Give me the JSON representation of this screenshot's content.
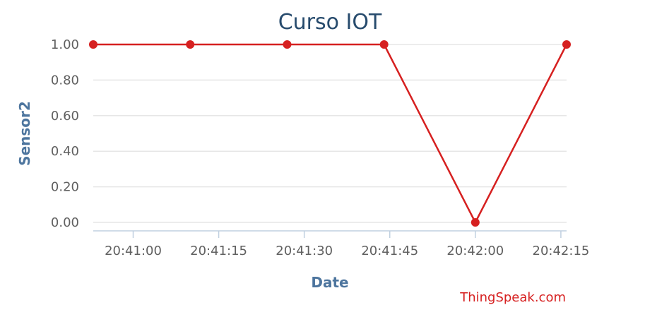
{
  "chart_data": {
    "type": "line",
    "title": "Curso IOT",
    "xlabel": "Date",
    "ylabel": "Sensor2",
    "ylim": [
      0,
      1
    ],
    "y_ticks": [
      "0.00",
      "0.20",
      "0.40",
      "0.60",
      "0.80",
      "1.00"
    ],
    "x_ticks": [
      "20:41:00",
      "20:41:15",
      "20:41:30",
      "20:41:45",
      "20:42:00",
      "20:42:15"
    ],
    "grid": true,
    "legend": "none",
    "series": [
      {
        "x": [
          "20:40:53",
          "20:41:10",
          "20:41:27",
          "20:41:44",
          "20:42:00",
          "20:42:16"
        ],
        "y": [
          1,
          1,
          1,
          1,
          0,
          1
        ],
        "color": "#d62020"
      }
    ],
    "credit": "ThingSpeak.com"
  }
}
